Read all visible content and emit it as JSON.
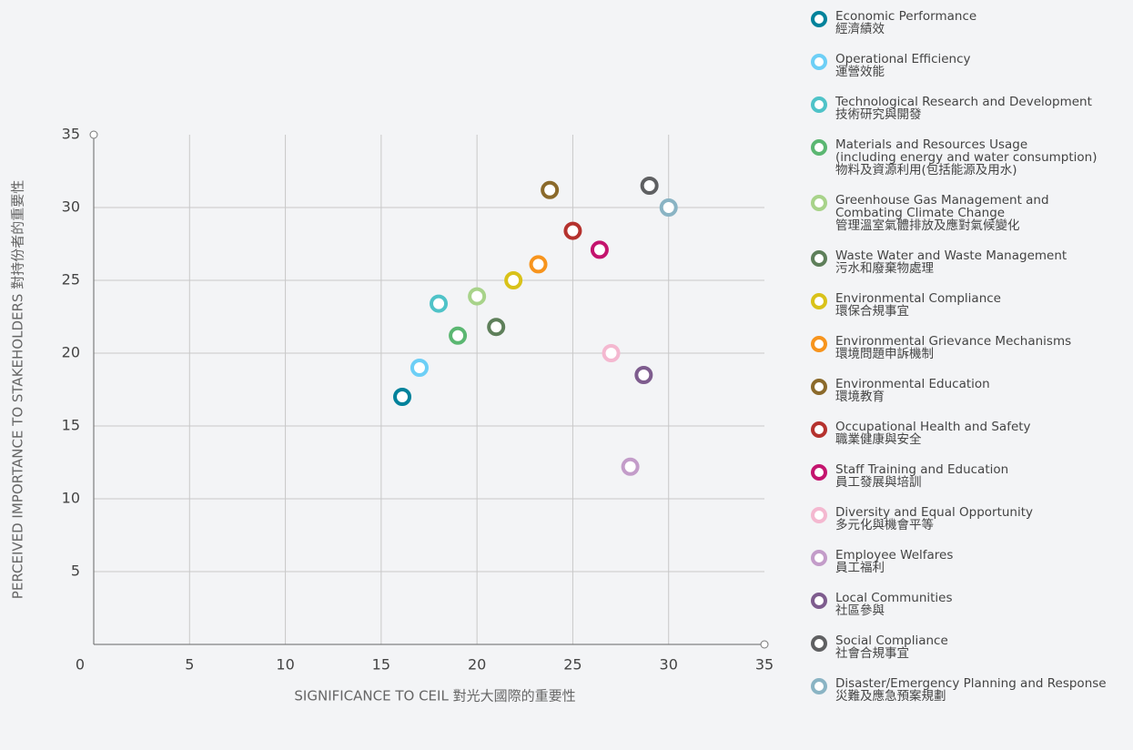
{
  "chart_data": {
    "type": "scatter",
    "xlabel": "SIGNIFICANCE TO CEIL 對光大國際的重要性",
    "ylabel": "PERCEIVED IMPORTANCE TO STAKEHOLDERS 對持份者的重要性",
    "xlim": [
      0,
      35
    ],
    "ylim": [
      0,
      35
    ],
    "xticks": [
      0,
      5,
      10,
      15,
      20,
      25,
      30,
      35
    ],
    "yticks": [
      5,
      10,
      15,
      20,
      25,
      30,
      35
    ],
    "grid": true,
    "legend": "right",
    "series": [
      {
        "name": "Economic Performance",
        "name_zh": "經濟績效",
        "color": "#00829b",
        "x": [
          16.1
        ],
        "values": [
          17.0
        ]
      },
      {
        "name": "Operational Efficiency",
        "name_zh": "運營效能",
        "color": "#6dcff6",
        "x": [
          17.0
        ],
        "values": [
          19.0
        ]
      },
      {
        "name": "Technological Research and Development",
        "name_zh": "技術研究與開發",
        "color": "#4fc3c8",
        "x": [
          18.0
        ],
        "values": [
          23.4
        ]
      },
      {
        "name": "Materials and Resources Usage\n(including energy and water consumption)",
        "name_zh": "物料及資源利用(包括能源及用水)",
        "color": "#5bb772",
        "x": [
          19.0
        ],
        "values": [
          21.2
        ]
      },
      {
        "name": "Greenhouse Gas Management and\nCombating Climate Change",
        "name_zh": "管理溫室氣體排放及應對氣候變化",
        "color": "#a8d38a",
        "x": [
          20.0
        ],
        "values": [
          23.9
        ]
      },
      {
        "name": "Waste Water and Waste Management",
        "name_zh": "污水和廢棄物處理",
        "color": "#5e7f5a",
        "x": [
          21.0
        ],
        "values": [
          21.8
        ]
      },
      {
        "name": "Environmental Compliance",
        "name_zh": "環保合規事宜",
        "color": "#d9c21a",
        "x": [
          21.9
        ],
        "values": [
          25.0
        ]
      },
      {
        "name": "Environmental Grievance Mechanisms",
        "name_zh": "環境問題申訴機制",
        "color": "#f7941d",
        "x": [
          23.2
        ],
        "values": [
          26.1
        ]
      },
      {
        "name": "Environmental Education",
        "name_zh": "環境教育",
        "color": "#8b6a2b",
        "x": [
          23.8
        ],
        "values": [
          31.2
        ]
      },
      {
        "name": "Occupational Health and Safety",
        "name_zh": "職業健康與安全",
        "color": "#b5322e",
        "x": [
          25.0
        ],
        "values": [
          28.4
        ]
      },
      {
        "name": "Staff Training and Education",
        "name_zh": "員工發展與培訓",
        "color": "#c4146e",
        "x": [
          26.4
        ],
        "values": [
          27.1
        ]
      },
      {
        "name": "Diversity and Equal Opportunity",
        "name_zh": "多元化與機會平等",
        "color": "#f4b8d0",
        "x": [
          27.0
        ],
        "values": [
          20.0
        ]
      },
      {
        "name": "Employee Welfares",
        "name_zh": "員工福利",
        "color": "#c39cc9",
        "x": [
          28.0
        ],
        "values": [
          12.2
        ]
      },
      {
        "name": "Local Communities",
        "name_zh": "社區參與",
        "color": "#7e5c8e",
        "x": [
          28.7
        ],
        "values": [
          18.5
        ]
      },
      {
        "name": "Social Compliance",
        "name_zh": "社會合規事宜",
        "color": "#5f6062",
        "x": [
          29.0
        ],
        "values": [
          31.5
        ]
      },
      {
        "name": "Disaster/Emergency Planning and Response",
        "name_zh": "災難及應急預案規劃",
        "color": "#8ab4c4",
        "x": [
          30.0
        ],
        "values": [
          30.0
        ]
      }
    ]
  }
}
